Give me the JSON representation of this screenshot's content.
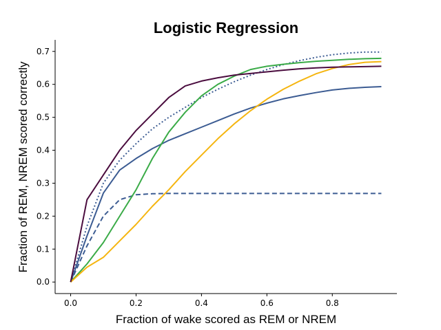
{
  "chart_data": {
    "type": "line",
    "title": "Logistic Regression",
    "xlabel": "Fraction of wake scored as REM or NREM",
    "ylabel": "Fraction of REM, NREM scored correctly",
    "xlim": [
      -0.0475,
      0.9975
    ],
    "ylim": [
      -0.035,
      0.735
    ],
    "xticks": [
      0.0,
      0.2,
      0.4,
      0.6,
      0.8
    ],
    "xtick_labels": [
      "0.0",
      "0.2",
      "0.4",
      "0.6",
      "0.8"
    ],
    "yticks": [
      0.0,
      0.1,
      0.2,
      0.3,
      0.4,
      0.5,
      0.6,
      0.7
    ],
    "ytick_labels": [
      "0.0",
      "0.1",
      "0.2",
      "0.3",
      "0.4",
      "0.5",
      "0.6",
      "0.7"
    ],
    "grid": false,
    "x": [
      0.0,
      0.05,
      0.1,
      0.15,
      0.2,
      0.25,
      0.3,
      0.35,
      0.4,
      0.45,
      0.5,
      0.55,
      0.6,
      0.65,
      0.7,
      0.75,
      0.8,
      0.85,
      0.9,
      0.95
    ],
    "series": [
      {
        "color": "#3b5b92",
        "style": "solid",
        "values": [
          0.0,
          0.14,
          0.27,
          0.34,
          0.375,
          0.405,
          0.43,
          0.45,
          0.47,
          0.49,
          0.51,
          0.528,
          0.543,
          0.556,
          0.566,
          0.575,
          0.583,
          0.588,
          0.591,
          0.593
        ]
      },
      {
        "color": "#3b5b92",
        "style": "dashed",
        "values": [
          0.0,
          0.11,
          0.2,
          0.25,
          0.265,
          0.268,
          0.269,
          0.269,
          0.269,
          0.269,
          0.269,
          0.269,
          0.269,
          0.269,
          0.269,
          0.269,
          0.269,
          0.269,
          0.269,
          0.269
        ]
      },
      {
        "color": "#3b5b92",
        "style": "dotted",
        "values": [
          0.0,
          0.17,
          0.3,
          0.37,
          0.42,
          0.465,
          0.5,
          0.53,
          0.56,
          0.585,
          0.608,
          0.628,
          0.645,
          0.66,
          0.672,
          0.682,
          0.69,
          0.695,
          0.698,
          0.698
        ]
      },
      {
        "color": "#3aab47",
        "style": "solid",
        "values": [
          0.0,
          0.055,
          0.12,
          0.2,
          0.28,
          0.375,
          0.455,
          0.515,
          0.565,
          0.6,
          0.625,
          0.645,
          0.655,
          0.661,
          0.666,
          0.67,
          0.673,
          0.676,
          0.678,
          0.679
        ]
      },
      {
        "color": "#f5b50f",
        "style": "solid",
        "values": [
          0.0,
          0.045,
          0.075,
          0.125,
          0.175,
          0.23,
          0.28,
          0.335,
          0.385,
          0.435,
          0.48,
          0.52,
          0.555,
          0.585,
          0.61,
          0.632,
          0.648,
          0.66,
          0.667,
          0.669
        ]
      },
      {
        "color": "#4a0c3e",
        "style": "solid",
        "values": [
          0.0,
          0.25,
          0.325,
          0.4,
          0.46,
          0.51,
          0.56,
          0.595,
          0.61,
          0.62,
          0.628,
          0.633,
          0.638,
          0.643,
          0.647,
          0.65,
          0.652,
          0.653,
          0.654,
          0.655
        ]
      }
    ]
  }
}
